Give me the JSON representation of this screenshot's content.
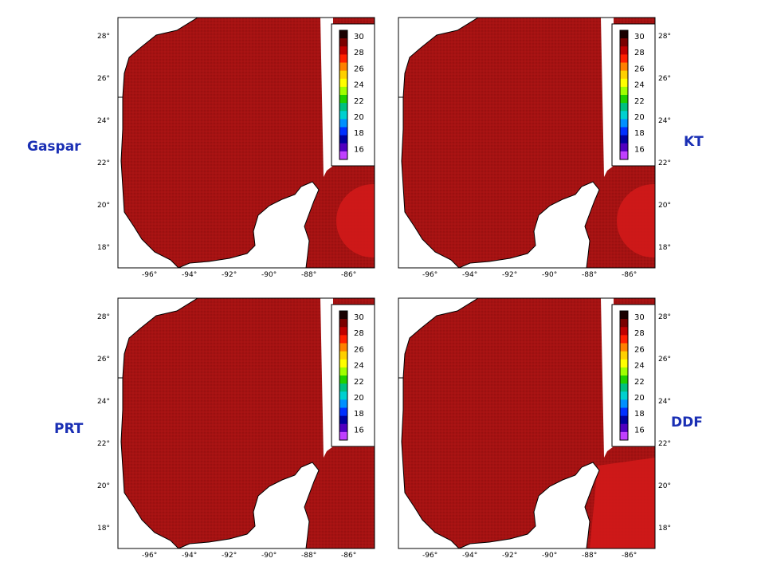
{
  "figure": {
    "panels": [
      {
        "label": "Gaspar",
        "label_side": "left",
        "warm_patch": "circle"
      },
      {
        "label": "KT",
        "label_side": "right",
        "warm_patch": "circle"
      },
      {
        "label": "PRT",
        "label_side": "left",
        "warm_patch": "none"
      },
      {
        "label": "DDF",
        "label_side": "right",
        "warm_patch": "corner"
      }
    ],
    "lon_ticks": [
      "-96°",
      "-94°",
      "-92°",
      "-90°",
      "-88°",
      "-86°"
    ],
    "lat_ticks": [
      "28°",
      "26°",
      "24°",
      "22°",
      "20°",
      "18°"
    ],
    "colorbar": {
      "tick_labels": [
        "30",
        "28",
        "26",
        "24",
        "22",
        "20",
        "18",
        "16"
      ],
      "colors": [
        "#1a0000",
        "#7a0000",
        "#c00000",
        "#ff2000",
        "#ff8000",
        "#ffd000",
        "#ffff00",
        "#a0ff00",
        "#20d000",
        "#00c080",
        "#00d0d0",
        "#0090ff",
        "#0030ff",
        "#0000a0",
        "#5000c0",
        "#c040ff"
      ]
    },
    "colors": {
      "ocean": "#a51212",
      "warm_patch": "#d31a1a",
      "land": "#ffffff",
      "label": "#1a2fb4"
    }
  }
}
